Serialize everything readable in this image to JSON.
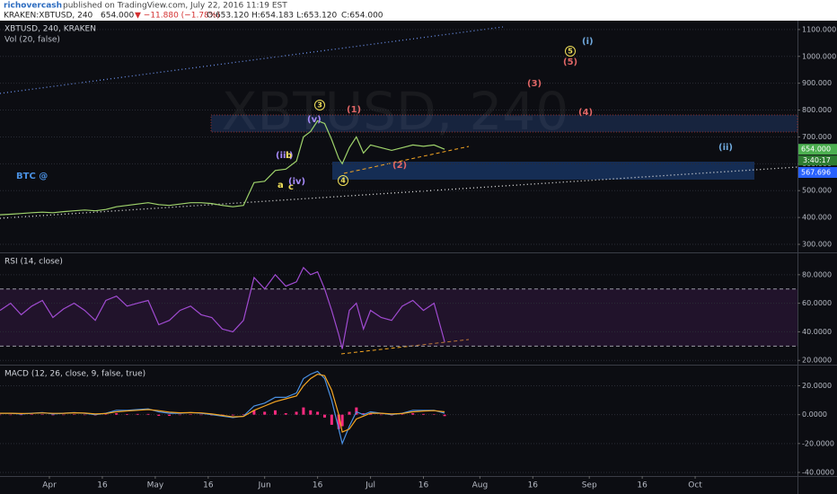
{
  "header": {
    "author": "richovercash",
    "published": "published on TradingView.com, July 22, 2016 11:19 EST",
    "symbol": "KRAKEN:XBTUSD, 240",
    "last": "654.000",
    "change": "▼ −11.880 (−1.78%)",
    "open": "O:653.120",
    "high": "H:654.183",
    "low": "L:653.120",
    "close": "C:654.000"
  },
  "chart_data": [
    {
      "type": "line",
      "title": "XBTUSD, 240, KRAKEN",
      "subtitle": "Vol (20, false)",
      "watermark": "XBTUSD, 240",
      "x": [
        78,
        81,
        84,
        87,
        90,
        93,
        96,
        99,
        102,
        105,
        108,
        111,
        114,
        117,
        120,
        123,
        126,
        129,
        132,
        135,
        138,
        141,
        144,
        147,
        150,
        153,
        156,
        159,
        162,
        164,
        166,
        168,
        170,
        172,
        174,
        175,
        177,
        179,
        181,
        183,
        186,
        189,
        192,
        195,
        198,
        201,
        204
      ],
      "series": [
        {
          "name": "XBTUSD",
          "color": "#9fd36b",
          "values": [
            410,
            412,
            415,
            418,
            420,
            418,
            422,
            425,
            428,
            425,
            430,
            440,
            445,
            450,
            455,
            448,
            445,
            450,
            455,
            455,
            452,
            445,
            440,
            445,
            530,
            535,
            575,
            580,
            610,
            700,
            720,
            760,
            750,
            690,
            620,
            600,
            660,
            700,
            640,
            670,
            660,
            650,
            660,
            670,
            665,
            670,
            654
          ]
        }
      ],
      "xlim": [
        78,
        304
      ],
      "ylim": [
        270,
        1133
      ],
      "grid": true,
      "yticks": [
        {
          "value": 1100,
          "label": "1100.000"
        },
        {
          "value": 1000,
          "label": "1000.000"
        },
        {
          "value": 900,
          "label": "900.000"
        },
        {
          "value": 800,
          "label": "800.000"
        },
        {
          "value": 700,
          "label": "700.000"
        },
        {
          "value": 600,
          "label": "600.000"
        },
        {
          "value": 500,
          "label": "500.000"
        },
        {
          "value": 400,
          "label": "400.000"
        },
        {
          "value": 300,
          "label": "300.000"
        }
      ],
      "price_markers": [
        {
          "value": 654,
          "label": "654.000",
          "color": "#4caf50"
        },
        {
          "value": 567.696,
          "label": "567.696",
          "color": "#2962ff"
        }
      ],
      "countdown": "3:40:17",
      "annotations": [
        {
          "text": "(i)",
          "color": "#6fa8dc"
        },
        {
          "text": "5",
          "color": "#f1e05a",
          "circled": true
        },
        {
          "text": "(5)",
          "color": "#e06666"
        },
        {
          "text": "(3)",
          "color": "#e06666"
        },
        {
          "text": "(4)",
          "color": "#e06666"
        },
        {
          "text": "(1)",
          "color": "#e06666"
        },
        {
          "text": "(2)",
          "color": "#e06666"
        },
        {
          "text": "3",
          "color": "#f1e05a",
          "circled": true
        },
        {
          "text": "(v)",
          "color": "#a78bfa"
        },
        {
          "text": "(iii)",
          "color": "#a78bfa"
        },
        {
          "text": "b",
          "color": "#f1e05a"
        },
        {
          "text": "a",
          "color": "#f1e05a"
        },
        {
          "text": "c",
          "color": "#f1e05a"
        },
        {
          "text": "(iv)",
          "color": "#a78bfa"
        },
        {
          "text": "4",
          "color": "#f1e05a",
          "circled": true
        },
        {
          "text": "(ii)",
          "color": "#6fa8dc"
        },
        {
          "text": "BTC @",
          "color": "#4a90e2"
        }
      ]
    },
    {
      "type": "line",
      "title": "RSI (14, close)",
      "x": [
        78,
        81,
        84,
        87,
        90,
        93,
        96,
        99,
        102,
        105,
        108,
        111,
        114,
        117,
        120,
        123,
        126,
        129,
        132,
        135,
        138,
        141,
        144,
        147,
        150,
        153,
        156,
        159,
        162,
        164,
        166,
        168,
        170,
        172,
        174,
        175,
        177,
        179,
        181,
        183,
        186,
        189,
        192,
        195,
        198,
        201,
        204
      ],
      "series": [
        {
          "name": "RSI",
          "color": "#a04bd1",
          "values": [
            55,
            60,
            52,
            58,
            62,
            50,
            56,
            60,
            55,
            48,
            62,
            65,
            58,
            60,
            62,
            45,
            48,
            55,
            58,
            52,
            50,
            42,
            40,
            48,
            78,
            70,
            80,
            72,
            75,
            85,
            80,
            82,
            70,
            55,
            38,
            28,
            55,
            60,
            42,
            55,
            50,
            48,
            58,
            62,
            55,
            60,
            33
          ]
        }
      ],
      "xlim": [
        78,
        304
      ],
      "ylim": [
        17,
        95
      ],
      "grid": true,
      "levels": [
        70,
        30
      ],
      "yticks": [
        {
          "value": 80,
          "label": "80.0000"
        },
        {
          "value": 60,
          "label": "60.0000"
        },
        {
          "value": 40,
          "label": "40.0000"
        },
        {
          "value": 20,
          "label": "20.0000"
        }
      ]
    },
    {
      "type": "line",
      "title": "MACD (12, 26, close, 9, false, true)",
      "x": [
        78,
        81,
        84,
        87,
        90,
        93,
        96,
        99,
        102,
        105,
        108,
        111,
        114,
        117,
        120,
        123,
        126,
        129,
        132,
        135,
        138,
        141,
        144,
        147,
        150,
        153,
        156,
        159,
        162,
        164,
        166,
        168,
        170,
        172,
        174,
        175,
        177,
        179,
        181,
        183,
        186,
        189,
        192,
        195,
        198,
        201,
        204
      ],
      "series": [
        {
          "name": "Histogram",
          "color": "#ff2a7f",
          "style": "histogram",
          "values": [
            0,
            0,
            -0.3,
            0.1,
            0.3,
            -0.4,
            0,
            0.2,
            -0.1,
            -0.5,
            0.2,
            1,
            0.4,
            0.5,
            0.5,
            -0.8,
            -0.8,
            -0.3,
            0.1,
            -0.2,
            -0.5,
            -0.5,
            -0.5,
            0.2,
            3,
            2,
            3,
            1,
            2,
            5,
            3,
            2,
            -2,
            -7,
            -10,
            -8,
            2,
            5,
            1,
            1,
            0,
            -0.5,
            0.2,
            1,
            0.5,
            0.2,
            -1
          ]
        },
        {
          "name": "MACD",
          "color": "#4a90e2",
          "values": [
            1,
            1,
            0.5,
            1,
            1.5,
            0.5,
            1,
            1.5,
            1,
            0,
            1,
            3,
            3,
            3.5,
            4,
            2,
            1,
            1,
            1.5,
            1,
            0,
            -1,
            -2,
            -1,
            6,
            8,
            12,
            12,
            15,
            25,
            28,
            30,
            25,
            10,
            -10,
            -20,
            -8,
            2,
            0,
            2,
            1,
            0,
            1,
            3,
            3,
            3,
            1
          ]
        },
        {
          "name": "Signal",
          "color": "#f5a623",
          "values": [
            1,
            1,
            0.8,
            0.9,
            1.2,
            0.9,
            1,
            1.3,
            1.1,
            0.5,
            0.8,
            2,
            2.6,
            3,
            3.5,
            2.8,
            1.8,
            1.3,
            1.4,
            1.2,
            0.5,
            -0.5,
            -1.5,
            -1.2,
            3,
            6,
            9,
            11,
            13,
            20,
            25,
            28,
            27,
            17,
            0,
            -12,
            -10,
            -3,
            -1,
            1,
            1,
            0.5,
            0.8,
            2,
            2.5,
            2.8,
            2
          ]
        }
      ],
      "xlim": [
        78,
        304
      ],
      "ylim": [
        -42.5,
        34
      ],
      "grid": true,
      "yticks": [
        {
          "value": 20,
          "label": "20.0000"
        },
        {
          "value": 0,
          "label": "0.0000"
        },
        {
          "value": -20,
          "label": "-20.0000"
        },
        {
          "value": -40,
          "label": "-40.0000"
        }
      ],
      "xticks": [
        {
          "value": 92,
          "label": "Apr"
        },
        {
          "value": 107,
          "label": "16"
        },
        {
          "value": 122,
          "label": "May"
        },
        {
          "value": 137,
          "label": "16"
        },
        {
          "value": 153,
          "label": "Jun"
        },
        {
          "value": 168,
          "label": "16"
        },
        {
          "value": 183,
          "label": "Jul"
        },
        {
          "value": 198,
          "label": "16"
        },
        {
          "value": 214,
          "label": "Aug"
        },
        {
          "value": 229,
          "label": "16"
        },
        {
          "value": 245,
          "label": "Sep"
        },
        {
          "value": 260,
          "label": "16"
        },
        {
          "value": 275,
          "label": "Oct"
        }
      ]
    }
  ]
}
